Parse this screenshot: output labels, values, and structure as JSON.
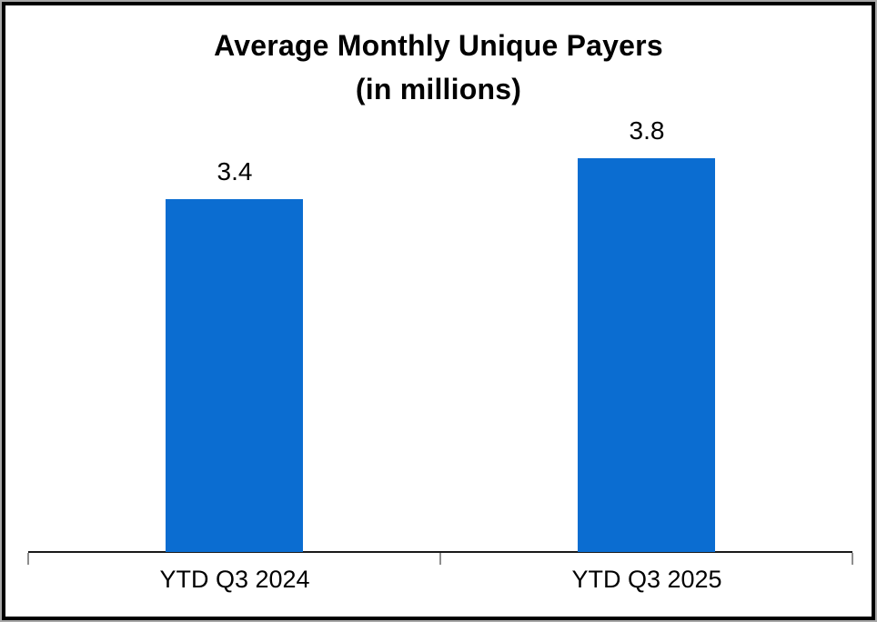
{
  "chart_data": {
    "type": "bar",
    "title": "Average Monthly Unique Payers (in millions)",
    "title_line1": "Average Monthly Unique Payers",
    "title_line2": "(in millions)",
    "categories": [
      "YTD Q3 2024",
      "YTD Q3 2025"
    ],
    "values": [
      3.4,
      3.8
    ],
    "value_labels": [
      "3.4",
      "3.8"
    ],
    "series_name": "Average Monthly Unique Payers",
    "xlabel": "",
    "ylabel": "",
    "ylim": [
      0,
      4.2
    ],
    "grid": false,
    "legend_position": "none",
    "data_labels": "above-bar",
    "bar_color": "#0b6dd1",
    "axis_color": "#1a1a1a",
    "tick_color": "#8e8e8e",
    "frame_color": "#000000"
  }
}
